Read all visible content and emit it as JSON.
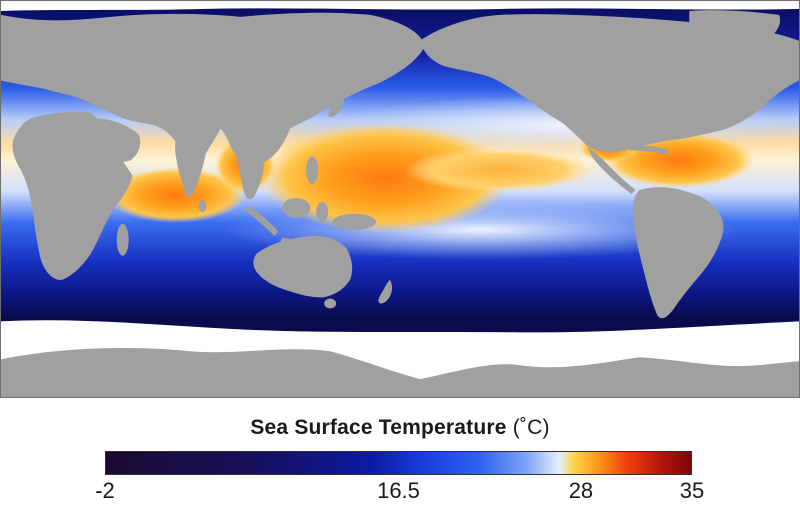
{
  "map": {
    "title": "Sea Surface Temperature",
    "unit": "(˚C)",
    "colors": {
      "land": "#a0a0a0",
      "ice": "#ffffff",
      "cold_ocean": "#0b0b63",
      "warm_water": "#ff9a1a"
    }
  },
  "legend": {
    "min": -2,
    "max": 35,
    "ticks": [
      {
        "label": "-2",
        "value": -2
      },
      {
        "label": "16.5",
        "value": 16.5
      },
      {
        "label": "28",
        "value": 28
      },
      {
        "label": "35",
        "value": 35
      }
    ]
  }
}
